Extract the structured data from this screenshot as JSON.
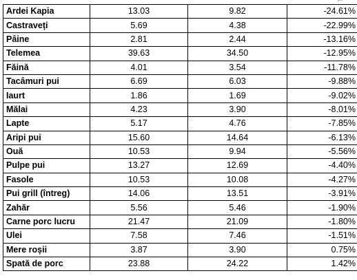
{
  "table": {
    "rows": [
      {
        "product": "Ardei Kapia",
        "price_old": "13.03",
        "price_new": "9.82",
        "change": "-24.61%"
      },
      {
        "product": "Castraveți",
        "price_old": "5.69",
        "price_new": "4.38",
        "change": "-22.99%"
      },
      {
        "product": "Pâine",
        "price_old": "2.81",
        "price_new": "2.44",
        "change": "-13.16%"
      },
      {
        "product": "Telemea",
        "price_old": "39.63",
        "price_new": "34.50",
        "change": "-12.95%"
      },
      {
        "product": "Făină",
        "price_old": "4.01",
        "price_new": "3.54",
        "change": "-11.78%"
      },
      {
        "product": "Tacâmuri pui",
        "price_old": "6.69",
        "price_new": "6.03",
        "change": "-9.88%"
      },
      {
        "product": "Iaurt",
        "price_old": "1.86",
        "price_new": "1.69",
        "change": "-9.02%"
      },
      {
        "product": "Mălai",
        "price_old": "4.23",
        "price_new": "3.90",
        "change": "-8.01%"
      },
      {
        "product": "Lapte",
        "price_old": "5.17",
        "price_new": "4.76",
        "change": "-7.85%"
      },
      {
        "product": "Aripi pui",
        "price_old": "15.60",
        "price_new": "14.64",
        "change": "-6.13%"
      },
      {
        "product": "Ouă",
        "price_old": "10.53",
        "price_new": "9.94",
        "change": "-5.56%"
      },
      {
        "product": "Pulpe pui",
        "price_old": "13.27",
        "price_new": "12.69",
        "change": "-4.40%"
      },
      {
        "product": "Fasole",
        "price_old": "10.53",
        "price_new": "10.08",
        "change": "-4.27%"
      },
      {
        "product": "Pui grill (întreg)",
        "price_old": "14.06",
        "price_new": "13.51",
        "change": "-3.91%"
      },
      {
        "product": "Zahăr",
        "price_old": "5.56",
        "price_new": "5.46",
        "change": "-1.90%"
      },
      {
        "product": "Carne porc lucru",
        "price_old": "21.47",
        "price_new": "21.09",
        "change": "-1.80%"
      },
      {
        "product": "Ulei",
        "price_old": "7.58",
        "price_new": "7.46",
        "change": "-1.51%"
      },
      {
        "product": "Mere roșii",
        "price_old": "3.87",
        "price_new": "3.90",
        "change": "0.75%"
      },
      {
        "product": "Spată de porc",
        "price_old": "23.88",
        "price_new": "24.22",
        "change": "1.42%"
      }
    ]
  }
}
